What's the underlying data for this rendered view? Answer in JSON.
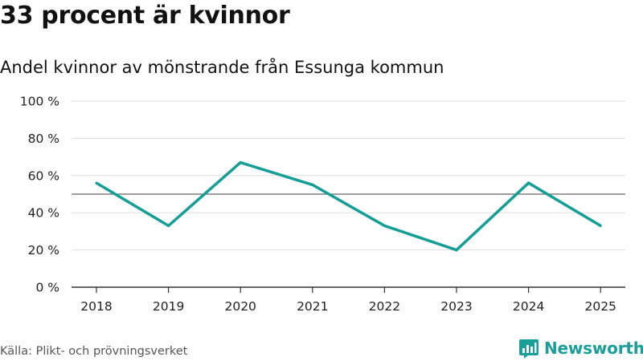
{
  "header": {
    "title": "33 procent är kvinnor",
    "subtitle": "Andel kvinnor av mönstrande från Essunga kommun"
  },
  "footer": {
    "source": "Källa: Plikt- och prövningsverket",
    "brand": "Newsworthy"
  },
  "colors": {
    "line": "#159e96",
    "reference": "#666666",
    "grid": "#dddddd",
    "axis": "#333333",
    "brand": "#1a9e97"
  },
  "icons": {
    "brand_logo": "bar-chart-badge-icon"
  },
  "chart_data": {
    "type": "line",
    "x": [
      "2018",
      "2019",
      "2020",
      "2021",
      "2022",
      "2023",
      "2024",
      "2025"
    ],
    "series": [
      {
        "values": [
          56,
          33,
          67,
          55,
          33,
          20,
          56,
          33
        ]
      }
    ],
    "reference_line": 50,
    "ylim": [
      0,
      100
    ],
    "yticks": [
      0,
      20,
      40,
      60,
      80,
      100
    ],
    "ytick_labels": [
      "0 %",
      "20 %",
      "40 %",
      "60 %",
      "80 %",
      "100 %"
    ],
    "grid": true,
    "legend": "none"
  }
}
